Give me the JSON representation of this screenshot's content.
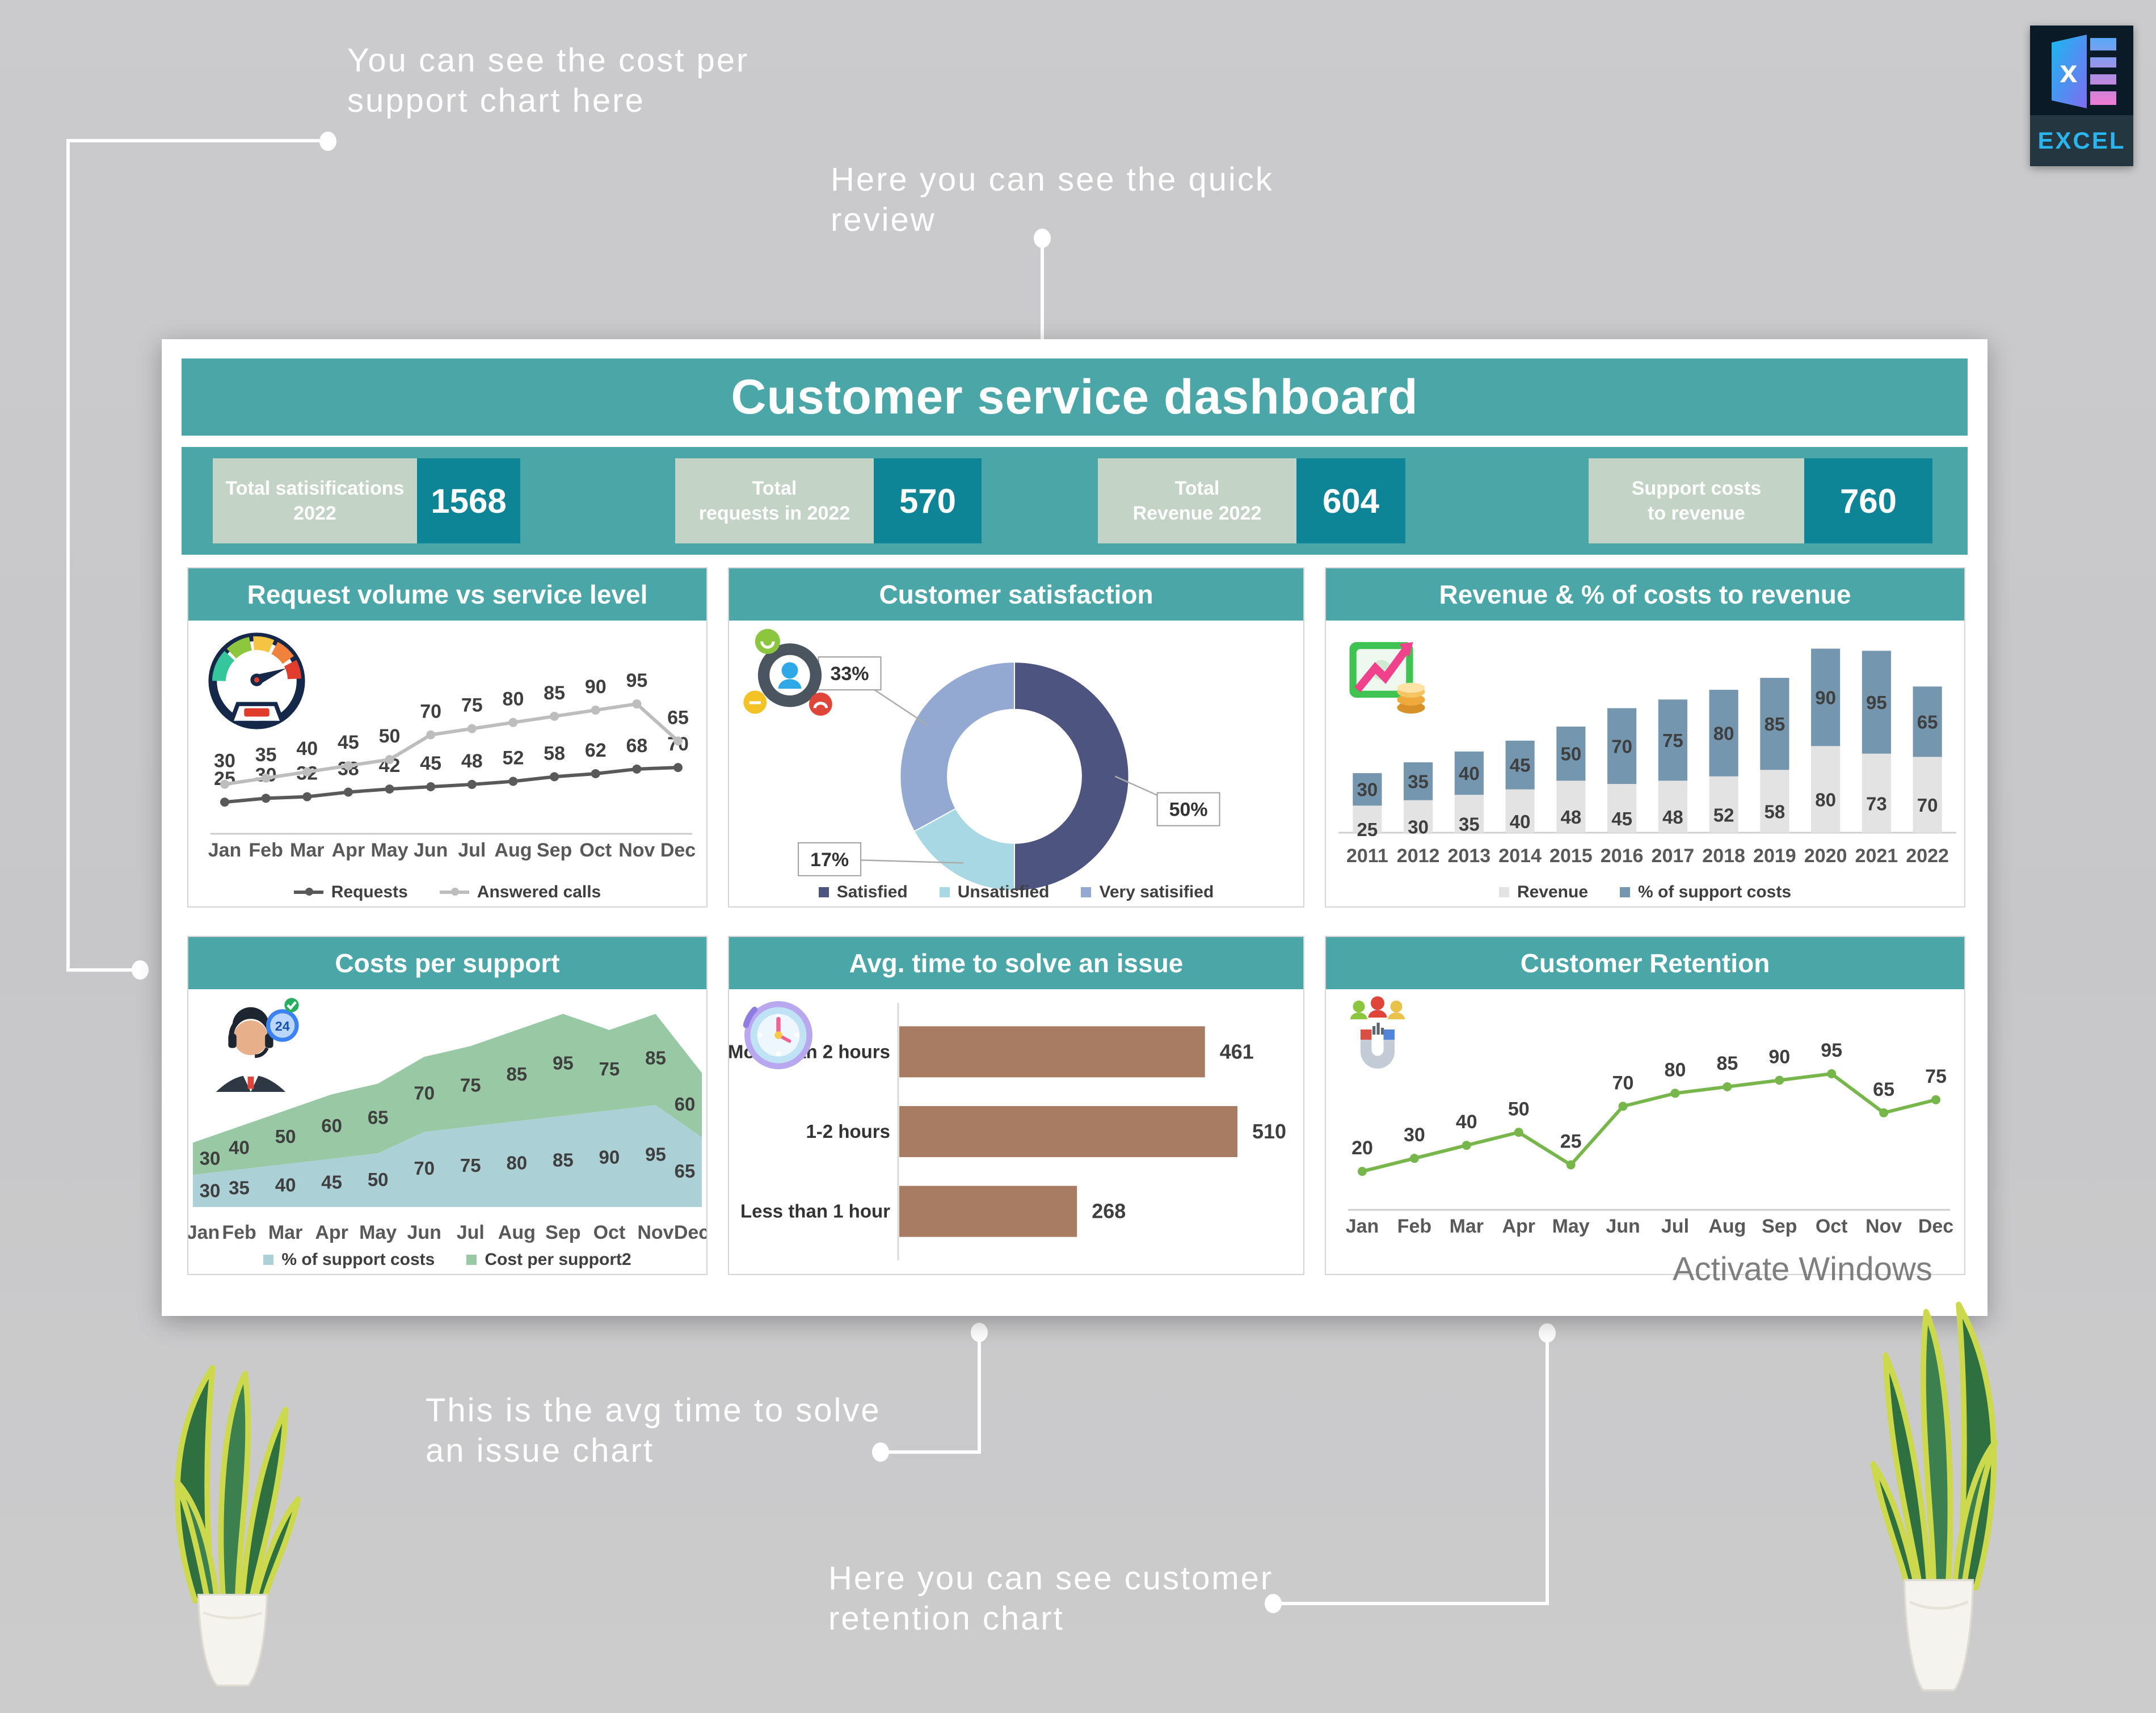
{
  "page": {
    "background": "#c9c9cb",
    "watermark": "Activate Windows"
  },
  "excel_badge": {
    "label": "EXCEL"
  },
  "annotations": {
    "cost_per_support": {
      "text": "You can see the cost per support chart here"
    },
    "quick_review": {
      "text": "Here you can see the quick review"
    },
    "avg_time": {
      "text": "This is the avg time to solve an issue chart"
    },
    "retention": {
      "text": "Here you can see customer retention chart"
    }
  },
  "dashboard": {
    "title": "Customer service dashboard",
    "colors": {
      "teal": "#4aa6a7",
      "kpi_value_bg": "#0d8596",
      "kpi_label_bg": "#c3d3c6"
    },
    "kpis": [
      {
        "label_lines": [
          "Total satisifications",
          "2022"
        ],
        "value": "1568"
      },
      {
        "label_lines": [
          "Total",
          "requests in 2022"
        ],
        "value": "570"
      },
      {
        "label_lines": [
          "Total",
          "Revenue 2022"
        ],
        "value": "604"
      },
      {
        "label_lines": [
          "Support costs",
          "to revenue"
        ],
        "value": "760"
      }
    ]
  },
  "chart_data": [
    {
      "id": "request-volume",
      "type": "line",
      "title": "Request volume vs service level",
      "icon": "gauge-icon",
      "categories": [
        "Jan",
        "Feb",
        "Mar",
        "Apr",
        "May",
        "Jun",
        "Jul",
        "Aug",
        "Sep",
        "Oct",
        "Nov",
        "Dec"
      ],
      "legend": true,
      "legend_position": "bottom",
      "series": [
        {
          "name": "Requests",
          "color": "#595959",
          "ylim": [
            0,
            180
          ],
          "values": [
            25,
            30,
            32,
            38,
            42,
            45,
            48,
            52,
            58,
            62,
            68,
            70
          ]
        },
        {
          "name": "Answered calls",
          "color": "#bdbdbd",
          "ylim": [
            0,
            112
          ],
          "values": [
            30,
            35,
            40,
            45,
            50,
            70,
            75,
            80,
            85,
            90,
            95,
            65
          ]
        }
      ]
    },
    {
      "id": "customer-satisfaction",
      "type": "pie",
      "title": "Customer satisfaction",
      "icon": "satisfaction-icon",
      "slices": [
        {
          "label": "Satisfied",
          "value": 50,
          "pct_label": "50%",
          "color": "#4e5480"
        },
        {
          "label": "Unsatisfied",
          "value": 17,
          "pct_label": "17%",
          "color": "#a9d8e5"
        },
        {
          "label": "Very satisified",
          "value": 33,
          "pct_label": "33%",
          "color": "#93a9d2"
        }
      ],
      "legend_position": "bottom"
    },
    {
      "id": "revenue-costs",
      "type": "bar",
      "title": "Revenue & % of costs to revenue",
      "icon": "money-icon",
      "stacked": true,
      "ylim": [
        0,
        175
      ],
      "categories": [
        "2011",
        "2012",
        "2013",
        "2014",
        "2015",
        "2016",
        "2017",
        "2018",
        "2019",
        "2020",
        "2021",
        "2022"
      ],
      "series": [
        {
          "name": "Revenue",
          "color": "#e3e3e3",
          "values": [
            25,
            30,
            35,
            40,
            48,
            45,
            48,
            52,
            58,
            80,
            73,
            70
          ]
        },
        {
          "name": "% of support costs",
          "color": "#7496ae",
          "values": [
            30,
            35,
            40,
            45,
            50,
            70,
            75,
            80,
            85,
            90,
            95,
            65
          ]
        }
      ],
      "legend_position": "bottom"
    },
    {
      "id": "costs-per-support",
      "type": "area",
      "title": "Costs per support",
      "icon": "agent-icon",
      "stacked": true,
      "ylim": [
        0,
        185
      ],
      "categories": [
        "Jan",
        "Feb",
        "Mar",
        "Apr",
        "May",
        "Jun",
        "Jul",
        "Aug",
        "Sep",
        "Oct",
        "Nov",
        "Dec"
      ],
      "series": [
        {
          "name": "% of support costs",
          "color": "#abd0d5",
          "values": [
            30,
            35,
            40,
            45,
            50,
            70,
            75,
            80,
            85,
            90,
            95,
            65
          ]
        },
        {
          "name": "Cost per support2",
          "color": "#98c9a4",
          "values": [
            30,
            40,
            50,
            60,
            65,
            70,
            75,
            85,
            95,
            75,
            85,
            60
          ]
        }
      ],
      "legend_position": "bottom"
    },
    {
      "id": "avg-time",
      "type": "bar",
      "title": "Avg. time to solve an issue",
      "icon": "clock-icon",
      "orientation": "horizontal",
      "xlim": [
        0,
        510
      ],
      "color": "#a87c63",
      "categories": [
        "More than 2 hours",
        "1-2 hours",
        "Less than 1 hour"
      ],
      "values": [
        461,
        510,
        268
      ]
    },
    {
      "id": "customer-retention",
      "type": "line",
      "title": "Customer Retention",
      "icon": "magnet-icon",
      "categories": [
        "Jan",
        "Feb",
        "Mar",
        "Apr",
        "May",
        "Jun",
        "Jul",
        "Aug",
        "Sep",
        "Oct",
        "Nov",
        "Dec"
      ],
      "legend": false,
      "series": [
        {
          "name": "Customer Retention",
          "color": "#77b64a",
          "ylim": [
            0,
            112
          ],
          "values": [
            20,
            30,
            40,
            50,
            25,
            70,
            80,
            85,
            90,
            95,
            65,
            75
          ]
        }
      ]
    }
  ]
}
